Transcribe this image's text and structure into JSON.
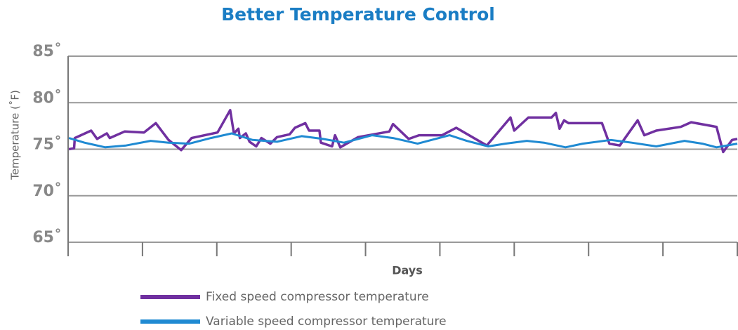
{
  "chart_data": {
    "type": "line",
    "title": "Better Temperature Control",
    "xlabel": "Days",
    "ylabel": "Temperature (˚F)",
    "xlim": [
      0,
      9
    ],
    "xticks": [
      0,
      1,
      2,
      3,
      4,
      5,
      6,
      7,
      8,
      9
    ],
    "ylim": [
      65,
      85
    ],
    "yticks": [
      {
        "value": 65,
        "label": "65˚"
      },
      {
        "value": 70,
        "label": "70˚"
      },
      {
        "value": 75,
        "label": "75˚"
      },
      {
        "value": 80,
        "label": "80˚"
      },
      {
        "value": 85,
        "label": "85˚"
      }
    ],
    "grid": true,
    "legend": "bottom",
    "series": [
      {
        "name": "Fixed speed compressor temperature",
        "color": "#7030a0",
        "x": [
          0.01,
          0.08,
          0.09,
          0.31,
          0.39,
          0.52,
          0.56,
          0.76,
          1.02,
          1.18,
          1.35,
          1.52,
          1.66,
          2.01,
          2.18,
          2.23,
          2.29,
          2.31,
          2.39,
          2.44,
          2.53,
          2.6,
          2.72,
          2.81,
          2.98,
          3.05,
          3.19,
          3.24,
          3.38,
          3.4,
          3.55,
          3.59,
          3.66,
          3.9,
          4.32,
          4.37,
          4.58,
          4.72,
          5.03,
          5.22,
          5.63,
          5.95,
          6.0,
          6.19,
          6.5,
          6.56,
          6.61,
          6.67,
          6.73,
          7.18,
          7.28,
          7.42,
          7.66,
          7.75,
          7.91,
          8.24,
          8.38,
          8.72,
          8.81,
          8.93,
          9.0
        ],
        "values": [
          75.0,
          75.1,
          76.2,
          77.0,
          76.1,
          76.7,
          76.2,
          76.9,
          76.8,
          77.8,
          76.0,
          74.9,
          76.2,
          76.8,
          79.2,
          76.7,
          77.2,
          76.2,
          76.7,
          75.8,
          75.3,
          76.2,
          75.6,
          76.3,
          76.6,
          77.3,
          77.8,
          77.0,
          77.0,
          75.7,
          75.3,
          76.5,
          75.2,
          76.3,
          76.9,
          77.7,
          76.1,
          76.5,
          76.5,
          77.3,
          75.4,
          78.4,
          77.0,
          78.4,
          78.4,
          78.9,
          77.2,
          78.1,
          77.8,
          77.8,
          75.6,
          75.4,
          78.1,
          76.5,
          77.0,
          77.4,
          77.9,
          77.4,
          74.7,
          76.0,
          76.1
        ]
      },
      {
        "name": "Variable speed compressor temperature",
        "color": "#1f8ad2",
        "x": [
          0.01,
          0.22,
          0.5,
          0.78,
          1.11,
          1.35,
          1.63,
          1.92,
          2.2,
          2.48,
          2.81,
          3.14,
          3.43,
          3.71,
          4.09,
          4.37,
          4.7,
          5.13,
          5.36,
          5.65,
          5.88,
          6.17,
          6.4,
          6.69,
          6.92,
          7.3,
          7.58,
          7.91,
          8.29,
          8.53,
          8.72,
          9.0
        ],
        "values": [
          76.2,
          75.7,
          75.2,
          75.4,
          75.9,
          75.7,
          75.6,
          76.2,
          76.7,
          76.0,
          75.8,
          76.4,
          76.1,
          75.7,
          76.5,
          76.2,
          75.6,
          76.5,
          75.9,
          75.3,
          75.6,
          75.9,
          75.7,
          75.2,
          75.6,
          76.0,
          75.7,
          75.3,
          75.9,
          75.6,
          75.2,
          75.6
        ]
      }
    ]
  }
}
